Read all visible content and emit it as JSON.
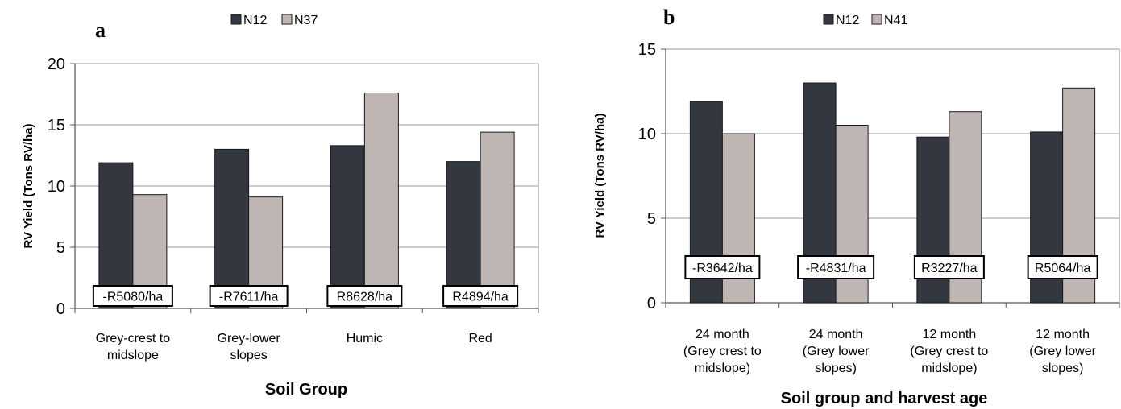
{
  "chart_data": [
    {
      "type": "bar",
      "panel_label": "a",
      "categories": [
        [
          "Grey-crest to",
          "midslope"
        ],
        [
          "Grey-lower",
          "slopes"
        ],
        [
          "Humic"
        ],
        [
          "Red"
        ]
      ],
      "series": [
        {
          "name": "N12",
          "values": [
            11.9,
            13.0,
            13.3,
            12.0
          ]
        },
        {
          "name": "N37",
          "values": [
            9.3,
            9.1,
            17.6,
            14.4
          ]
        }
      ],
      "annotations": [
        "-R5080/ha",
        "-R7611/ha",
        "R8628/ha",
        "R4894/ha"
      ],
      "xlabel": "Soil Group",
      "ylabel": "RV Yield (Tons RV/ha)",
      "ylim": [
        0,
        20
      ],
      "yticks": [
        0,
        5,
        10,
        15,
        20
      ],
      "grid": true,
      "legend": "top"
    },
    {
      "type": "bar",
      "panel_label": "b",
      "categories": [
        [
          "24 month",
          "(Grey crest to",
          "midslope)"
        ],
        [
          "24 month",
          "(Grey lower",
          "slopes)"
        ],
        [
          "12 month",
          "(Grey crest to",
          "midslope)"
        ],
        [
          "12 month",
          "(Grey lower",
          "slopes)"
        ]
      ],
      "series": [
        {
          "name": "N12",
          "values": [
            11.9,
            13.0,
            9.8,
            10.1
          ]
        },
        {
          "name": "N41",
          "values": [
            10.0,
            10.5,
            11.3,
            12.7
          ]
        }
      ],
      "annotations": [
        "-R3642/ha",
        "-R4831/ha",
        "R3227/ha",
        "R5064/ha"
      ],
      "xlabel": "Soil group and harvest age",
      "ylabel": "RV Yield (Tons RV/ha)",
      "ylim": [
        0,
        15
      ],
      "yticks": [
        0,
        5,
        10,
        15
      ],
      "grid": true,
      "legend": "top"
    }
  ],
  "colors": {
    "series1": "#333740",
    "series2": "#bfb6b3",
    "grid": "#9a9a9a",
    "plot_border": "#8c8c8c"
  }
}
